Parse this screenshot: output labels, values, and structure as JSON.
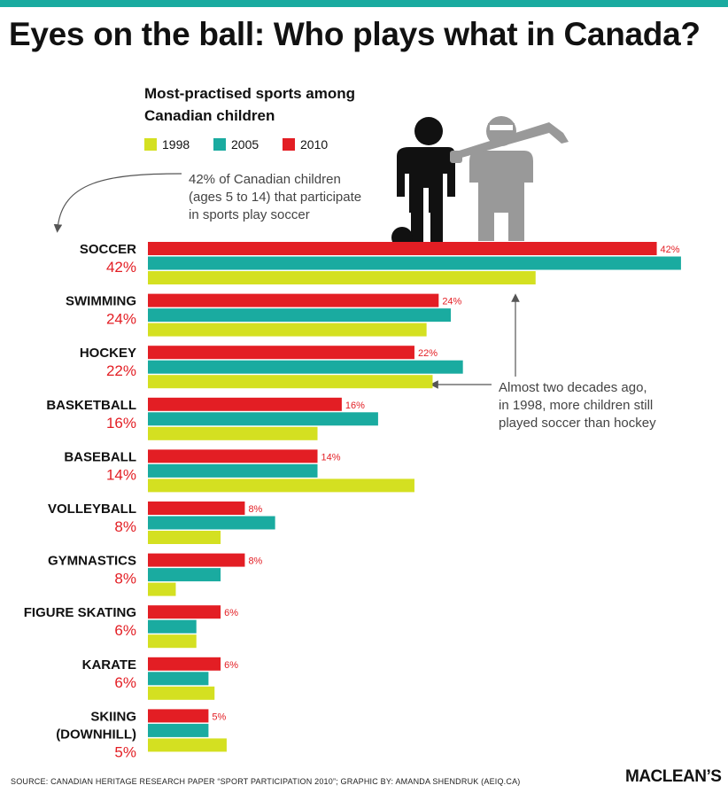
{
  "header": {
    "title": "Eyes on the ball: Who plays what in Canada?"
  },
  "chart_data": {
    "type": "bar",
    "orientation": "horizontal",
    "title": "Most-practised sports among Canadian children",
    "categories": [
      "SOCCER",
      "SWIMMING",
      "HOCKEY",
      "BASKETBALL",
      "BASEBALL",
      "VOLLEYBALL",
      "GYMNASTICS",
      "FIGURE SKATING",
      "KARATE",
      "SKIING (DOWNHILL)"
    ],
    "category_lines": [
      [
        "SOCCER"
      ],
      [
        "SWIMMING"
      ],
      [
        "HOCKEY"
      ],
      [
        "BASKETBALL"
      ],
      [
        "BASEBALL"
      ],
      [
        "VOLLEYBALL"
      ],
      [
        "GYMNASTICS"
      ],
      [
        "FIGURE SKATING"
      ],
      [
        "KARATE"
      ],
      [
        "SKIING",
        "(DOWNHILL)"
      ]
    ],
    "category_value_labels": [
      "42%",
      "24%",
      "22%",
      "16%",
      "14%",
      "8%",
      "8%",
      "6%",
      "6%",
      "5%"
    ],
    "series": [
      {
        "name": "2010",
        "color": "#e31e24",
        "values": [
          42,
          24,
          22,
          16,
          14,
          8,
          8,
          6,
          6,
          5
        ],
        "labels": [
          "42%",
          "24%",
          "22%",
          "16%",
          "14%",
          "8%",
          "8%",
          "6%",
          "6%",
          "5%"
        ]
      },
      {
        "name": "2005",
        "color": "#1aaba0",
        "values": [
          44,
          25,
          26,
          19,
          14,
          10.5,
          6,
          4,
          5,
          5
        ]
      },
      {
        "name": "1998",
        "color": "#d4e021",
        "values": [
          32,
          23,
          23.5,
          14,
          22,
          6,
          2.3,
          4,
          5.5,
          6.5
        ]
      }
    ],
    "legend_order": [
      "1998",
      "2005",
      "2010"
    ],
    "xlim": [
      0,
      44
    ],
    "grid": false,
    "legend": "top-left",
    "annotations": [
      "42% of Canadian children (ages 5 to 14) that participate in sports play soccer",
      "Almost two decades ago, in 1998, more children still played soccer than hockey"
    ]
  },
  "legend": [
    {
      "label": "1998",
      "color": "#d4e021"
    },
    {
      "label": "2005",
      "color": "#1aaba0"
    },
    {
      "label": "2010",
      "color": "#e31e24"
    }
  ],
  "annotations": {
    "soccer_lines": [
      "42% of Canadian children",
      "(ages 5 to 14) that participate",
      "in sports play soccer"
    ],
    "hockey_lines": [
      "Almost two decades ago,",
      "in 1998, more children still",
      "played soccer than hockey"
    ]
  },
  "icons": [
    "soccer-player-icon",
    "hockey-player-icon"
  ],
  "footer": {
    "source": "SOURCE:  CANADIAN HERITAGE RESEARCH PAPER “SPORT PARTICIPATION 2010”; GRAPHIC BY: AMANDA SHENDRUK (AEIQ.CA)",
    "brand": "MACLEAN’S"
  }
}
